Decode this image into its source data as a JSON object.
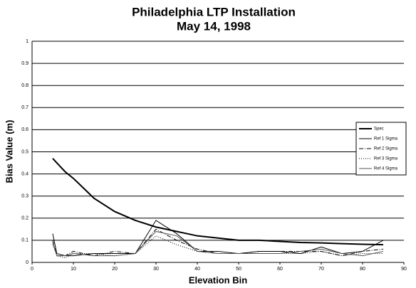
{
  "chart_data": {
    "type": "line",
    "title": "Philadelphia LTP Installation",
    "subtitle": "May 14, 1998",
    "x_label": "Elevation Bin",
    "y_label": "Bias Value (m)",
    "x": [
      5,
      6,
      8,
      10,
      15,
      20,
      25,
      30,
      35,
      40,
      45,
      50,
      55,
      60,
      65,
      70,
      75,
      80,
      85
    ],
    "series": [
      {
        "name": "Spec",
        "color": "#000000",
        "width": 2,
        "dash": "none",
        "values": [
          0.47,
          0.45,
          0.41,
          0.38,
          0.29,
          0.23,
          0.19,
          0.16,
          0.14,
          0.12,
          0.11,
          0.1,
          0.1,
          0.095,
          0.09,
          0.088,
          0.085,
          0.082,
          0.08
        ]
      },
      {
        "name": "Ref 1 Sigma",
        "color": "#000000",
        "width": 1,
        "dash": "none",
        "values": [
          0.13,
          0.04,
          0.03,
          0.03,
          0.04,
          0.04,
          0.04,
          0.19,
          0.13,
          0.05,
          0.05,
          0.04,
          0.05,
          0.05,
          0.04,
          0.07,
          0.04,
          0.05,
          0.1
        ]
      },
      {
        "name": "Ref 2 Sigma",
        "color": "#000000",
        "width": 1,
        "dash": "6 2 1 2",
        "values": [
          0.1,
          0.03,
          0.03,
          0.05,
          0.03,
          0.05,
          0.04,
          0.15,
          0.1,
          0.06,
          0.04,
          0.04,
          0.05,
          0.05,
          0.05,
          0.05,
          0.03,
          0.05,
          0.06
        ]
      },
      {
        "name": "Ref 3 Sigma",
        "color": "#000000",
        "width": 1,
        "dash": "1 2",
        "values": [
          0.08,
          0.03,
          0.02,
          0.04,
          0.04,
          0.03,
          0.04,
          0.12,
          0.08,
          0.05,
          0.04,
          0.04,
          0.04,
          0.04,
          0.04,
          0.05,
          0.03,
          0.04,
          0.04
        ]
      },
      {
        "name": "Ref 4 Sigma",
        "color": "#555555",
        "width": 1,
        "dash": "none",
        "values": [
          0.09,
          0.03,
          0.03,
          0.04,
          0.03,
          0.03,
          0.04,
          0.14,
          0.12,
          0.05,
          0.04,
          0.04,
          0.04,
          0.04,
          0.05,
          0.06,
          0.04,
          0.03,
          0.05
        ]
      }
    ],
    "xlim": [
      0,
      90
    ],
    "xticks": [
      0,
      10,
      20,
      30,
      40,
      50,
      60,
      70,
      80,
      90
    ],
    "ylim": [
      0,
      1
    ],
    "yticks": [
      0,
      0.1,
      0.2,
      0.3,
      0.4,
      0.5,
      0.6,
      0.7,
      0.8,
      0.9,
      1
    ],
    "grid": true,
    "legend": "right"
  }
}
